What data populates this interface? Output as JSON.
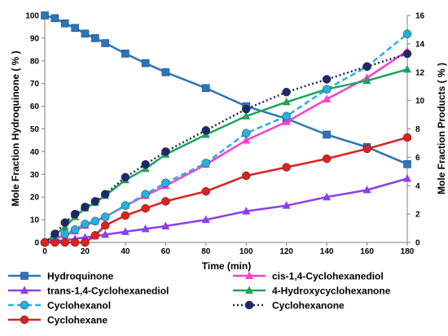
{
  "chart_data": {
    "type": "line",
    "xlabel": "Time (min)",
    "ylabel_left": "Mole Fraction  Hydroquinone ( % )",
    "ylabel_right": "Mole Fraction Products ( % )",
    "xlim": [
      0,
      180
    ],
    "ylim_left": [
      0,
      100
    ],
    "ylim_right": [
      0,
      16
    ],
    "x_ticks": [
      "0",
      "20",
      "40",
      "60",
      "80",
      "100",
      "120",
      "140",
      "160",
      "180"
    ],
    "y_left_ticks": [
      "0",
      "10",
      "20",
      "30",
      "40",
      "50",
      "60",
      "70",
      "80",
      "90",
      "100"
    ],
    "y_right_ticks": [
      "0",
      "2",
      "4",
      "6",
      "8",
      "10",
      "12",
      "14",
      "16"
    ],
    "grid": false,
    "legend_position": "bottom, three rows of two columns",
    "series": [
      {
        "name": "Hydroquinone",
        "axis": "left",
        "color": "#2E75B6",
        "marker": "square",
        "dashed": false,
        "x": [
          0,
          5,
          10,
          15,
          20,
          25,
          30,
          40,
          50,
          60,
          80,
          100,
          120,
          140,
          160,
          180
        ],
        "y": [
          100,
          98.8,
          96.5,
          94.5,
          92,
          90,
          87.8,
          83.2,
          79,
          75,
          68,
          60,
          54.5,
          47.5,
          42,
          34.5
        ]
      },
      {
        "name": "cis-1,4-Cyclohexanediol",
        "axis": "right",
        "color": "#FF3DCF",
        "marker": "triangle",
        "dashed": false,
        "x": [
          0,
          5,
          10,
          15,
          20,
          25,
          30,
          40,
          50,
          60,
          80,
          100,
          120,
          140,
          160,
          180
        ],
        "y": [
          0,
          0.3,
          0.5,
          0.8,
          1.2,
          1.5,
          1.8,
          2.6,
          3.3,
          4.0,
          5.5,
          7.2,
          8.5,
          10.1,
          11.6,
          13.5
        ]
      },
      {
        "name": "trans-1,4-Cyclohexanediol",
        "axis": "right",
        "color": "#8A3FF0",
        "marker": "triangle",
        "dashed": false,
        "x": [
          0,
          5,
          10,
          15,
          20,
          25,
          30,
          40,
          50,
          60,
          80,
          100,
          120,
          140,
          160,
          180
        ],
        "y": [
          0,
          0.1,
          0.15,
          0.25,
          0.35,
          0.45,
          0.55,
          0.75,
          0.95,
          1.15,
          1.6,
          2.2,
          2.6,
          3.2,
          3.7,
          4.5
        ]
      },
      {
        "name": "4-Hydroxycyclohexanone",
        "axis": "right",
        "color": "#1FA35A",
        "marker": "triangle",
        "dashed": false,
        "x": [
          0,
          5,
          10,
          15,
          20,
          25,
          30,
          40,
          50,
          60,
          80,
          100,
          120,
          140,
          160,
          180
        ],
        "y": [
          0,
          0.5,
          1.1,
          1.8,
          2.4,
          2.8,
          3.3,
          4.4,
          5.2,
          6.2,
          7.6,
          8.9,
          9.9,
          10.8,
          11.4,
          12.2
        ]
      },
      {
        "name": "Cyclohexanol",
        "axis": "right",
        "color": "#22B2E0",
        "marker": "circle",
        "dashed": true,
        "x": [
          0,
          5,
          10,
          15,
          20,
          25,
          30,
          40,
          50,
          60,
          80,
          100,
          120,
          140,
          160,
          180
        ],
        "y": [
          0,
          0.3,
          0.6,
          0.9,
          1.3,
          1.5,
          1.8,
          2.6,
          3.4,
          4.2,
          5.6,
          7.7,
          8.9,
          10.8,
          12.4,
          14.7
        ]
      },
      {
        "name": "Cyclohexanone",
        "axis": "right",
        "color": "#1B2A6B",
        "marker": "circle",
        "dashed": true,
        "dotted": true,
        "x": [
          0,
          5,
          10,
          15,
          20,
          25,
          30,
          40,
          50,
          60,
          80,
          100,
          120,
          140,
          160,
          180
        ],
        "y": [
          0,
          0.6,
          1.4,
          2.0,
          2.5,
          2.9,
          3.4,
          4.6,
          5.5,
          6.4,
          7.9,
          9.4,
          10.6,
          11.5,
          12.4,
          13.3
        ]
      },
      {
        "name": "Cyclohexane",
        "axis": "right",
        "color": "#E02020",
        "marker": "circle",
        "dashed": false,
        "x": [
          0,
          5,
          10,
          15,
          20,
          25,
          30,
          40,
          50,
          60,
          80,
          100,
          120,
          140,
          160,
          180
        ],
        "y": [
          0,
          0,
          0,
          0,
          0,
          0.5,
          1.2,
          1.9,
          2.4,
          2.9,
          3.6,
          4.7,
          5.3,
          5.9,
          6.6,
          7.4
        ]
      }
    ]
  }
}
